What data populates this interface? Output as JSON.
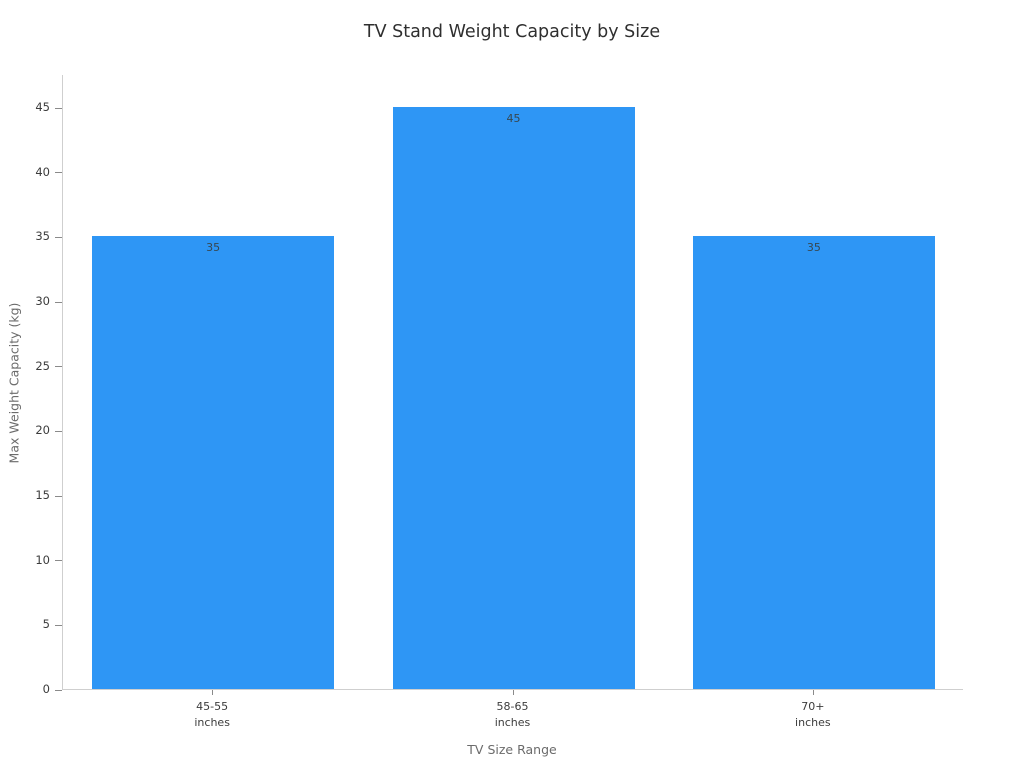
{
  "chart_data": {
    "type": "bar",
    "title": "TV Stand Weight Capacity by Size",
    "xlabel": "TV Size Range",
    "ylabel": "Max Weight Capacity (kg)",
    "categories": [
      "45-55\ninches",
      "58-65\ninches",
      "70+\ninches"
    ],
    "values": [
      35,
      45,
      35
    ],
    "value_labels": [
      "35",
      "45",
      "35"
    ],
    "yticks": [
      0,
      5,
      10,
      15,
      20,
      25,
      30,
      35,
      40,
      45
    ],
    "ylim": [
      0,
      47.5
    ],
    "grid": false,
    "legend": "none",
    "bar_color": "#2e96f5",
    "value_label_color": "#37474f",
    "axis_color": "#cfcfcf"
  }
}
